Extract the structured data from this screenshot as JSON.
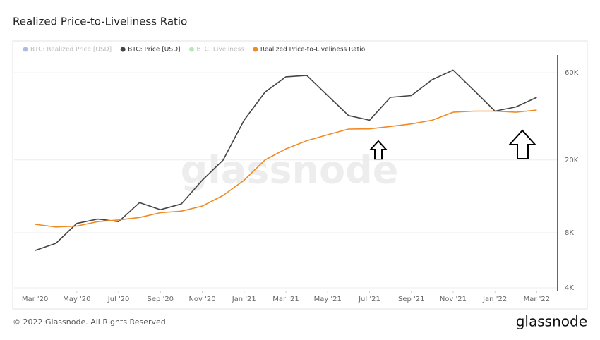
{
  "chart_data": {
    "type": "line",
    "title": "Realized Price-to-Liveliness Ratio",
    "x": [
      "2020-03",
      "2020-04",
      "2020-05",
      "2020-06",
      "2020-07",
      "2020-08",
      "2020-09",
      "2020-10",
      "2020-11",
      "2020-12",
      "2021-01",
      "2021-02",
      "2021-03",
      "2021-04",
      "2021-05",
      "2021-06",
      "2021-07",
      "2021-08",
      "2021-09",
      "2021-10",
      "2021-11",
      "2021-12",
      "2022-01",
      "2022-02",
      "2022-03"
    ],
    "xlim": [
      "2020-02",
      "2022-04"
    ],
    "xticks": [
      {
        "value": "2020-03",
        "label": "Mar '20"
      },
      {
        "value": "2020-05",
        "label": "May '20"
      },
      {
        "value": "2020-07",
        "label": "Jul '20"
      },
      {
        "value": "2020-09",
        "label": "Sep '20"
      },
      {
        "value": "2020-11",
        "label": "Nov '20"
      },
      {
        "value": "2021-01",
        "label": "Jan '21"
      },
      {
        "value": "2021-03",
        "label": "Mar '21"
      },
      {
        "value": "2021-05",
        "label": "May '21"
      },
      {
        "value": "2021-07",
        "label": "Jul '21"
      },
      {
        "value": "2021-09",
        "label": "Sep '21"
      },
      {
        "value": "2021-11",
        "label": "Nov '21"
      },
      {
        "value": "2022-01",
        "label": "Jan '22"
      },
      {
        "value": "2022-03",
        "label": "Mar '22"
      }
    ],
    "ylim": [
      3860,
      75000
    ],
    "y_scale": "log",
    "y_axis_side": "right",
    "yticks": [
      {
        "value": 4000,
        "label": "4K"
      },
      {
        "value": 8000,
        "label": "8K"
      },
      {
        "value": 20000,
        "label": "20K"
      },
      {
        "value": 60000,
        "label": "60K"
      }
    ],
    "grid": true,
    "legend_position": "top-left",
    "series": [
      {
        "name": "BTC: Realized Price [USD]",
        "color": "#1a3fa8",
        "visible": false
      },
      {
        "name": "BTC: Price [USD]",
        "color": "#444444",
        "visible": true,
        "values": [
          6400,
          7000,
          9000,
          9500,
          9200,
          11700,
          10700,
          11500,
          15500,
          20000,
          33000,
          47000,
          57000,
          58000,
          45000,
          35000,
          33000,
          44000,
          45000,
          55000,
          62000,
          48000,
          37000,
          39000,
          44000
        ]
      },
      {
        "name": "BTC: Liveliness",
        "color": "#2db83d",
        "visible": false
      },
      {
        "name": "Realized Price-to-Liveliness Ratio",
        "color": "#f08a24",
        "visible": true,
        "values": [
          8900,
          8600,
          8700,
          9200,
          9400,
          9700,
          10300,
          10500,
          11200,
          12800,
          15500,
          20000,
          23000,
          25500,
          27500,
          29500,
          29600,
          30500,
          31500,
          33000,
          36500,
          37000,
          37000,
          36500,
          37500
        ]
      }
    ],
    "watermark": "glassnode",
    "copyright": "© 2022 Glassnode. All Rights Reserved.",
    "logo": "glassnode"
  }
}
